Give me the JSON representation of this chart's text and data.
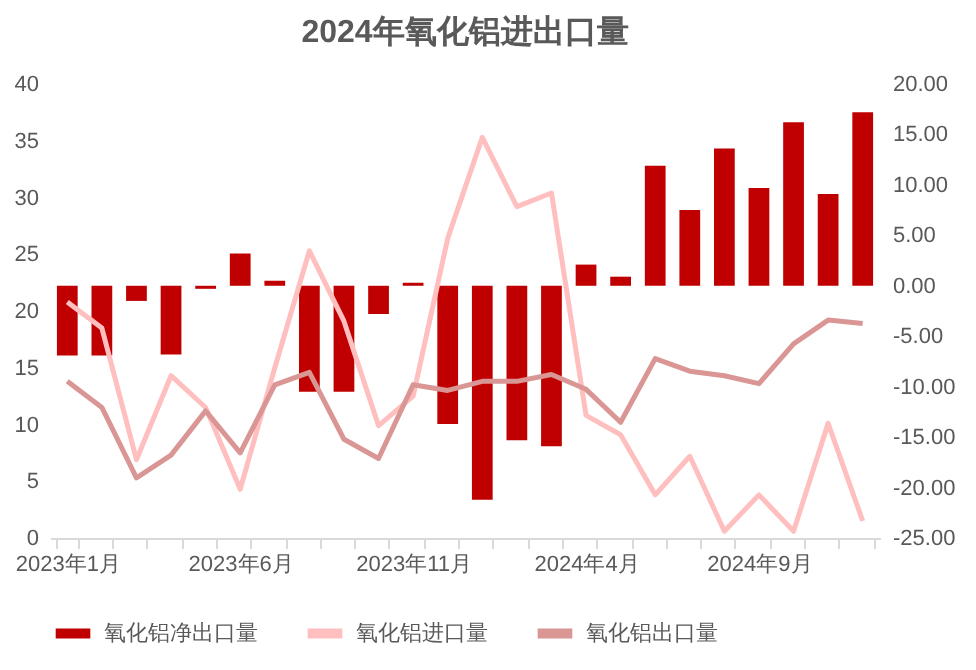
{
  "chart_data": {
    "type": "bar",
    "title": "2024年氧化铝进出口量",
    "categories": [
      "2023年1月",
      null,
      null,
      null,
      null,
      "2023年6月",
      null,
      null,
      null,
      null,
      "2023年11月",
      null,
      null,
      null,
      null,
      "2024年4月",
      null,
      null,
      null,
      null,
      "2024年9月",
      null,
      null,
      null
    ],
    "series": [
      {
        "name": "氧化铝净出口量",
        "axis": "y2",
        "color": "#c00000",
        "values": [
          -6.9,
          -6.9,
          -1.5,
          -6.8,
          -0.3,
          3.2,
          0.5,
          -10.5,
          -10.5,
          -2.8,
          0.3,
          -13.7,
          -21.2,
          -15.3,
          -15.9,
          2.1,
          0.9,
          11.9,
          7.5,
          13.6,
          9.7,
          16.2,
          9.1,
          17.2
        ]
      },
      {
        "name": "氧化铝进口量",
        "type": "line",
        "color": "#ffbfbf",
        "values": [
          20.8,
          18.5,
          6.9,
          14.3,
          11.5,
          4.3,
          15.0,
          25.3,
          19.1,
          9.9,
          12.5,
          26.4,
          35.3,
          29.2,
          30.4,
          10.8,
          9.1,
          3.8,
          7.2,
          0.6,
          3.8,
          0.6,
          10.1,
          1.5
        ]
      },
      {
        "name": "氧化铝出口量",
        "type": "line",
        "color": "#d99694",
        "values": [
          13.8,
          11.5,
          5.3,
          7.3,
          11.2,
          7.5,
          13.5,
          14.6,
          8.7,
          7.0,
          13.5,
          13.0,
          13.8,
          13.8,
          14.4,
          13.1,
          10.2,
          15.8,
          14.7,
          14.3,
          13.6,
          17.1,
          19.2,
          18.9
        ]
      }
    ],
    "ylim": [
      0,
      40
    ],
    "yticks": [
      0,
      5,
      10,
      15,
      20,
      25,
      30,
      35,
      40
    ],
    "y2lim": [
      -25,
      20
    ],
    "y2ticks": [
      {
        "value": -25,
        "label": "-25.00"
      },
      {
        "value": -20,
        "label": "-20.00"
      },
      {
        "value": -15,
        "label": "-15.00"
      },
      {
        "value": -10,
        "label": "-10.00"
      },
      {
        "value": -5,
        "label": "-5.00"
      },
      {
        "value": 0,
        "label": "0.00"
      },
      {
        "value": 5,
        "label": "5.00"
      },
      {
        "value": 10,
        "label": "10.00"
      },
      {
        "value": 15,
        "label": "15.00"
      },
      {
        "value": 20,
        "label": "20.00"
      }
    ],
    "grid": false,
    "legend": "bottom",
    "marker": "none",
    "line_style": "solid"
  }
}
